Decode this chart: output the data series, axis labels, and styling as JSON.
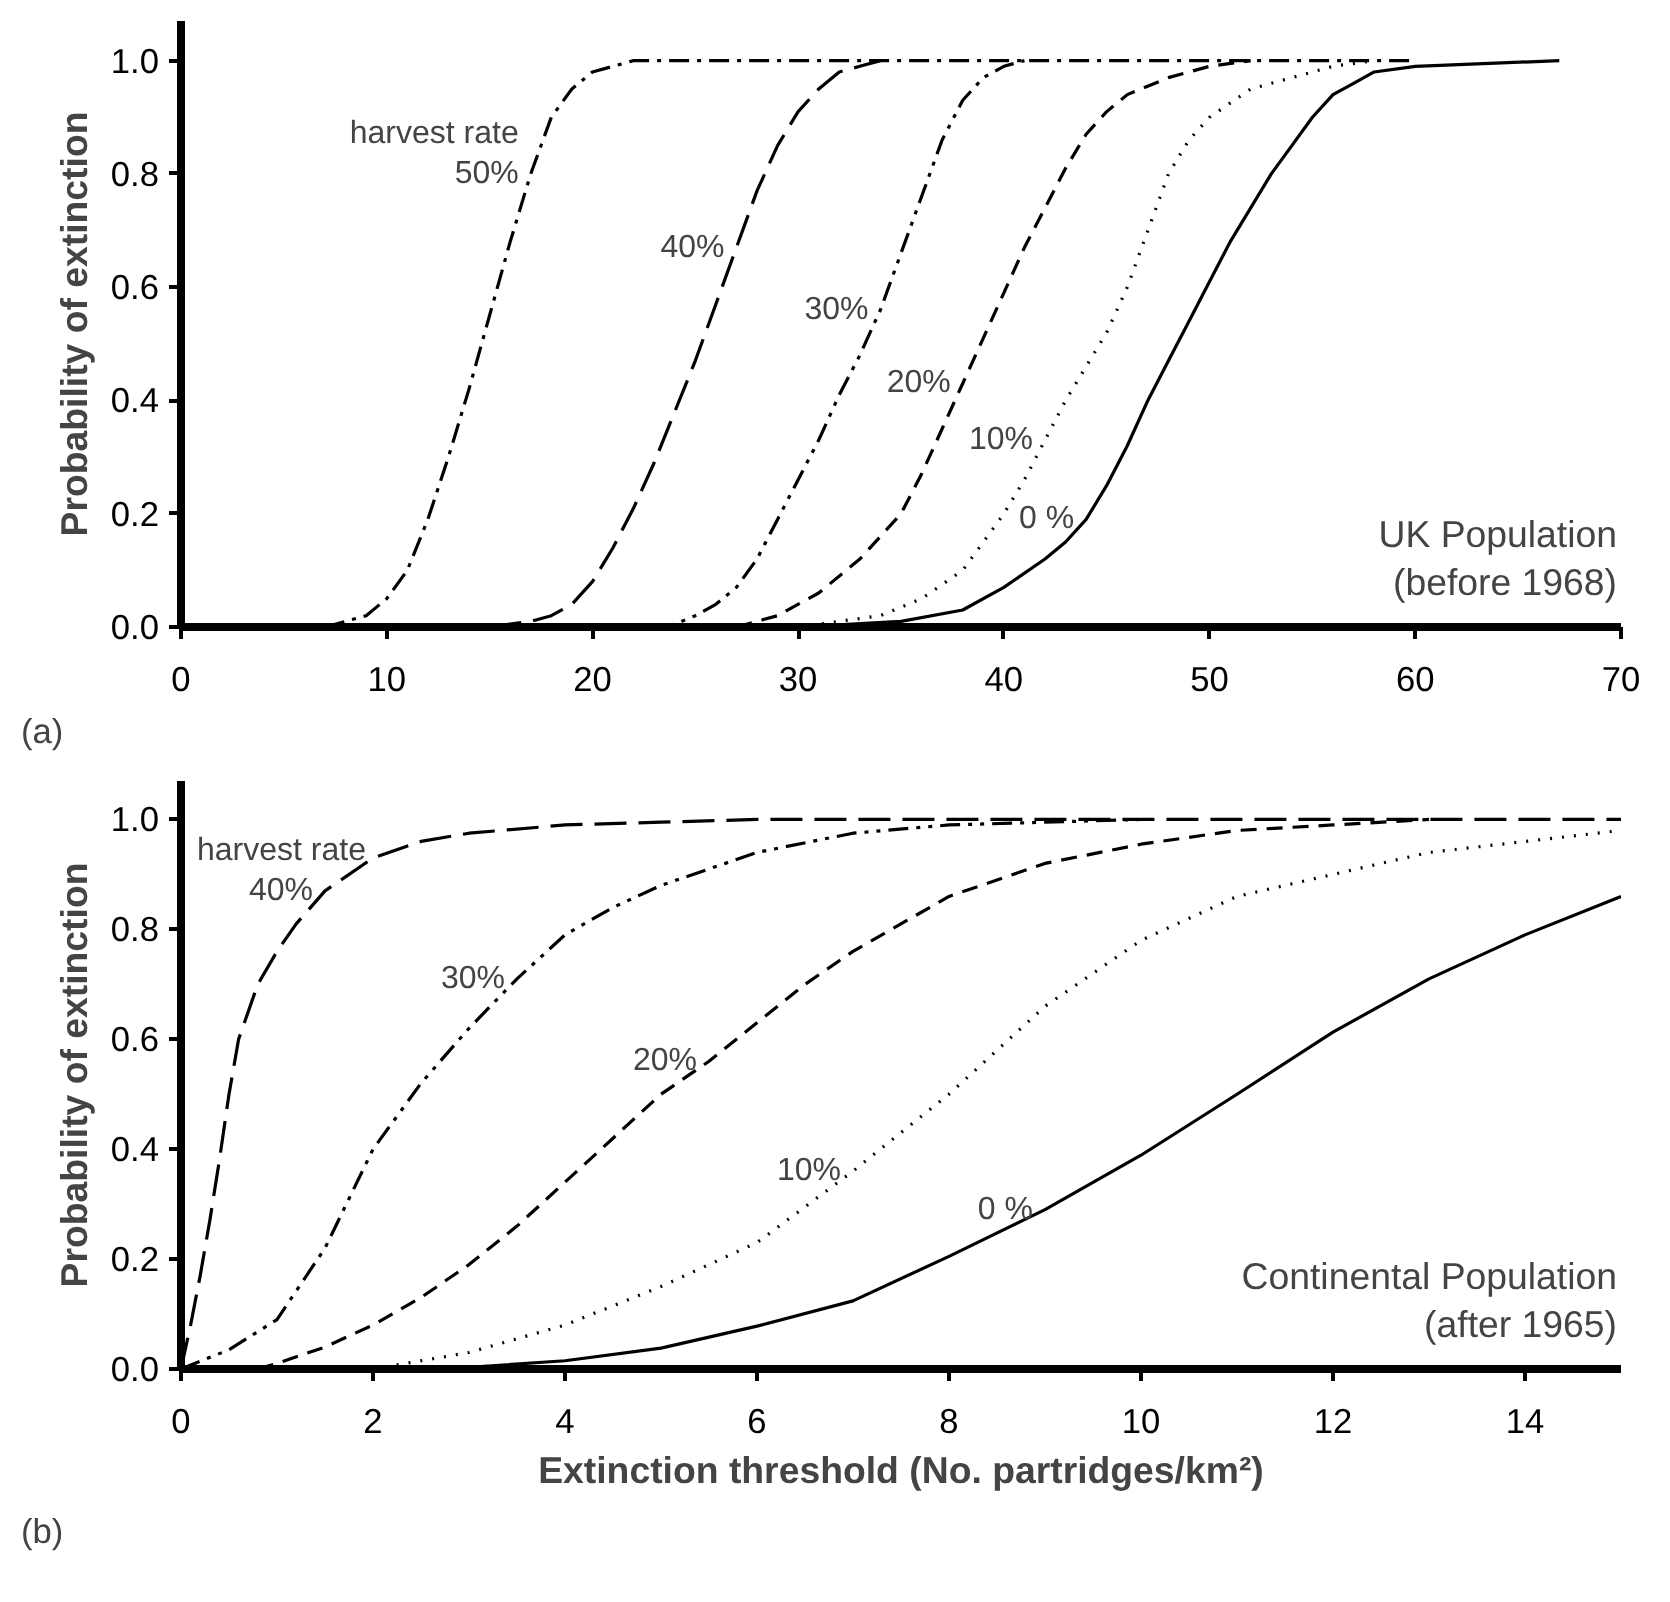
{
  "chart_data": [
    {
      "type": "line",
      "title": "(a)",
      "ylabel": "Probability of extinction",
      "xlim": [
        0,
        70
      ],
      "ylim": [
        0,
        1.07
      ],
      "xticks": [
        0,
        10,
        20,
        30,
        40,
        50,
        60,
        70
      ],
      "yticks": [
        {
          "value": 0,
          "label": "0.0"
        },
        {
          "value": 0.2,
          "label": "0.2"
        },
        {
          "value": 0.4,
          "label": "0.4"
        },
        {
          "value": 0.6,
          "label": "0.6"
        },
        {
          "value": 0.8,
          "label": "0.8"
        },
        {
          "value": 1,
          "label": "1.0"
        }
      ],
      "grid": false,
      "series": [
        {
          "name": "50%",
          "color": "#000000",
          "line_style": "dashdot",
          "x": [
            7,
            9,
            10,
            11,
            12,
            13,
            14,
            15,
            16,
            17,
            18,
            19,
            20,
            21,
            22,
            60
          ],
          "values": [
            0,
            0.02,
            0.05,
            0.1,
            0.19,
            0.3,
            0.42,
            0.55,
            0.68,
            0.8,
            0.9,
            0.95,
            0.98,
            0.99,
            1.0,
            1.0
          ]
        },
        {
          "name": "40%",
          "color": "#000000",
          "line_style": "longdash",
          "x": [
            15,
            17,
            18,
            19,
            20,
            21,
            22,
            23,
            24,
            25,
            26,
            27,
            28,
            29,
            30,
            31,
            32,
            33,
            34
          ],
          "values": [
            0,
            0.01,
            0.02,
            0.04,
            0.08,
            0.14,
            0.21,
            0.29,
            0.38,
            0.47,
            0.57,
            0.67,
            0.77,
            0.85,
            0.91,
            0.95,
            0.98,
            0.99,
            1.0
          ]
        },
        {
          "name": "30%",
          "color": "#000000",
          "line_style": "dashdotdot",
          "x": [
            23,
            24,
            25,
            26,
            27,
            28,
            29,
            30,
            31,
            32,
            33,
            34,
            35,
            36,
            37,
            38,
            39,
            40,
            41
          ],
          "values": [
            0,
            0.005,
            0.02,
            0.04,
            0.07,
            0.12,
            0.19,
            0.26,
            0.33,
            0.41,
            0.48,
            0.56,
            0.66,
            0.76,
            0.86,
            0.93,
            0.97,
            0.99,
            1.0
          ]
        },
        {
          "name": "20%",
          "color": "#000000",
          "line_style": "dashed",
          "x": [
            27,
            29,
            31,
            33,
            34,
            35,
            36,
            37,
            38,
            39,
            40,
            41,
            42,
            43,
            44,
            45,
            46,
            48,
            50,
            52
          ],
          "values": [
            0,
            0.02,
            0.06,
            0.12,
            0.16,
            0.2,
            0.27,
            0.35,
            0.43,
            0.51,
            0.59,
            0.67,
            0.74,
            0.81,
            0.87,
            0.91,
            0.94,
            0.97,
            0.99,
            1.0
          ]
        },
        {
          "name": "10%",
          "color": "#000000",
          "line_style": "dotted",
          "x": [
            30,
            34,
            36,
            38,
            39,
            40,
            41,
            42,
            43,
            44,
            45,
            46,
            47,
            48,
            49,
            50,
            52,
            54,
            56,
            58
          ],
          "values": [
            0,
            0.02,
            0.05,
            0.1,
            0.15,
            0.2,
            0.26,
            0.33,
            0.4,
            0.46,
            0.52,
            0.6,
            0.7,
            0.8,
            0.86,
            0.9,
            0.95,
            0.97,
            0.99,
            1.0
          ]
        },
        {
          "name": "0 %",
          "color": "#000000",
          "line_style": "solid",
          "x": [
            30,
            35,
            38,
            40,
            42,
            43,
            44,
            45,
            46,
            47,
            48,
            49,
            50,
            51,
            52,
            53,
            54,
            55,
            56,
            57,
            58,
            60,
            67
          ],
          "values": [
            0,
            0.01,
            0.03,
            0.07,
            0.12,
            0.15,
            0.19,
            0.25,
            0.32,
            0.4,
            0.47,
            0.54,
            0.61,
            0.68,
            0.74,
            0.8,
            0.85,
            0.9,
            0.94,
            0.96,
            0.98,
            0.99,
            1.0
          ]
        }
      ],
      "annotations": [
        "harvest rate",
        "UK Population",
        "(before 1968)"
      ]
    },
    {
      "type": "line",
      "title": "(b)",
      "xlabel": "Extinction threshold (No. partridges/km²)",
      "ylabel": "Probability of extinction",
      "xlim": [
        0,
        15
      ],
      "ylim": [
        0,
        1.07
      ],
      "xticks": [
        0,
        2,
        4,
        6,
        8,
        10,
        12,
        14
      ],
      "yticks": [
        {
          "value": 0,
          "label": "0.0"
        },
        {
          "value": 0.2,
          "label": "0.2"
        },
        {
          "value": 0.4,
          "label": "0.4"
        },
        {
          "value": 0.6,
          "label": "0.6"
        },
        {
          "value": 0.8,
          "label": "0.8"
        },
        {
          "value": 1,
          "label": "1.0"
        }
      ],
      "grid": false,
      "series": [
        {
          "name": "40%",
          "color": "#000000",
          "line_style": "longdash",
          "x": [
            0,
            0.1,
            0.2,
            0.3,
            0.4,
            0.5,
            0.6,
            0.8,
            1.0,
            1.2,
            1.5,
            2.0,
            2.5,
            3,
            4,
            5,
            6,
            8,
            10,
            15
          ],
          "values": [
            0,
            0.08,
            0.17,
            0.27,
            0.38,
            0.5,
            0.6,
            0.7,
            0.76,
            0.81,
            0.87,
            0.93,
            0.96,
            0.975,
            0.99,
            0.995,
            1,
            1,
            1,
            1
          ]
        },
        {
          "name": "30%",
          "color": "#000000",
          "line_style": "dashdotdot",
          "x": [
            0,
            0.5,
            1,
            1.5,
            2,
            2.5,
            3,
            3.5,
            4,
            4.5,
            5,
            6,
            7,
            8,
            10
          ],
          "values": [
            0,
            0.035,
            0.09,
            0.22,
            0.4,
            0.52,
            0.62,
            0.71,
            0.79,
            0.84,
            0.88,
            0.94,
            0.975,
            0.99,
            1
          ]
        },
        {
          "name": "20%",
          "color": "#000000",
          "line_style": "dashed",
          "x": [
            0.8,
            1,
            1.5,
            2,
            2.5,
            3,
            3.5,
            4,
            4.5,
            5,
            5.5,
            6,
            6.5,
            7,
            8,
            9,
            10,
            11,
            12,
            13
          ],
          "values": [
            0,
            0.01,
            0.04,
            0.08,
            0.13,
            0.19,
            0.26,
            0.34,
            0.42,
            0.5,
            0.56,
            0.63,
            0.7,
            0.76,
            0.86,
            0.92,
            0.955,
            0.98,
            0.99,
            1.0
          ]
        },
        {
          "name": "10%",
          "color": "#000000",
          "line_style": "dotted",
          "x": [
            2,
            3,
            4,
            5,
            6,
            7,
            8,
            9,
            10,
            11,
            12,
            13,
            14,
            15
          ],
          "values": [
            0,
            0.03,
            0.08,
            0.15,
            0.23,
            0.36,
            0.5,
            0.66,
            0.78,
            0.86,
            0.9,
            0.94,
            0.96,
            0.98
          ]
        },
        {
          "name": "0 %",
          "color": "#000000",
          "line_style": "solid",
          "x": [
            3,
            4,
            5,
            6,
            7,
            8,
            9,
            10,
            11,
            12,
            13,
            14,
            15
          ],
          "values": [
            0.003,
            0.015,
            0.038,
            0.078,
            0.124,
            0.205,
            0.29,
            0.389,
            0.5,
            0.613,
            0.71,
            0.79,
            0.86
          ]
        }
      ],
      "annotations": [
        "harvest rate",
        "Continental Population",
        "(after 1965)"
      ]
    }
  ]
}
